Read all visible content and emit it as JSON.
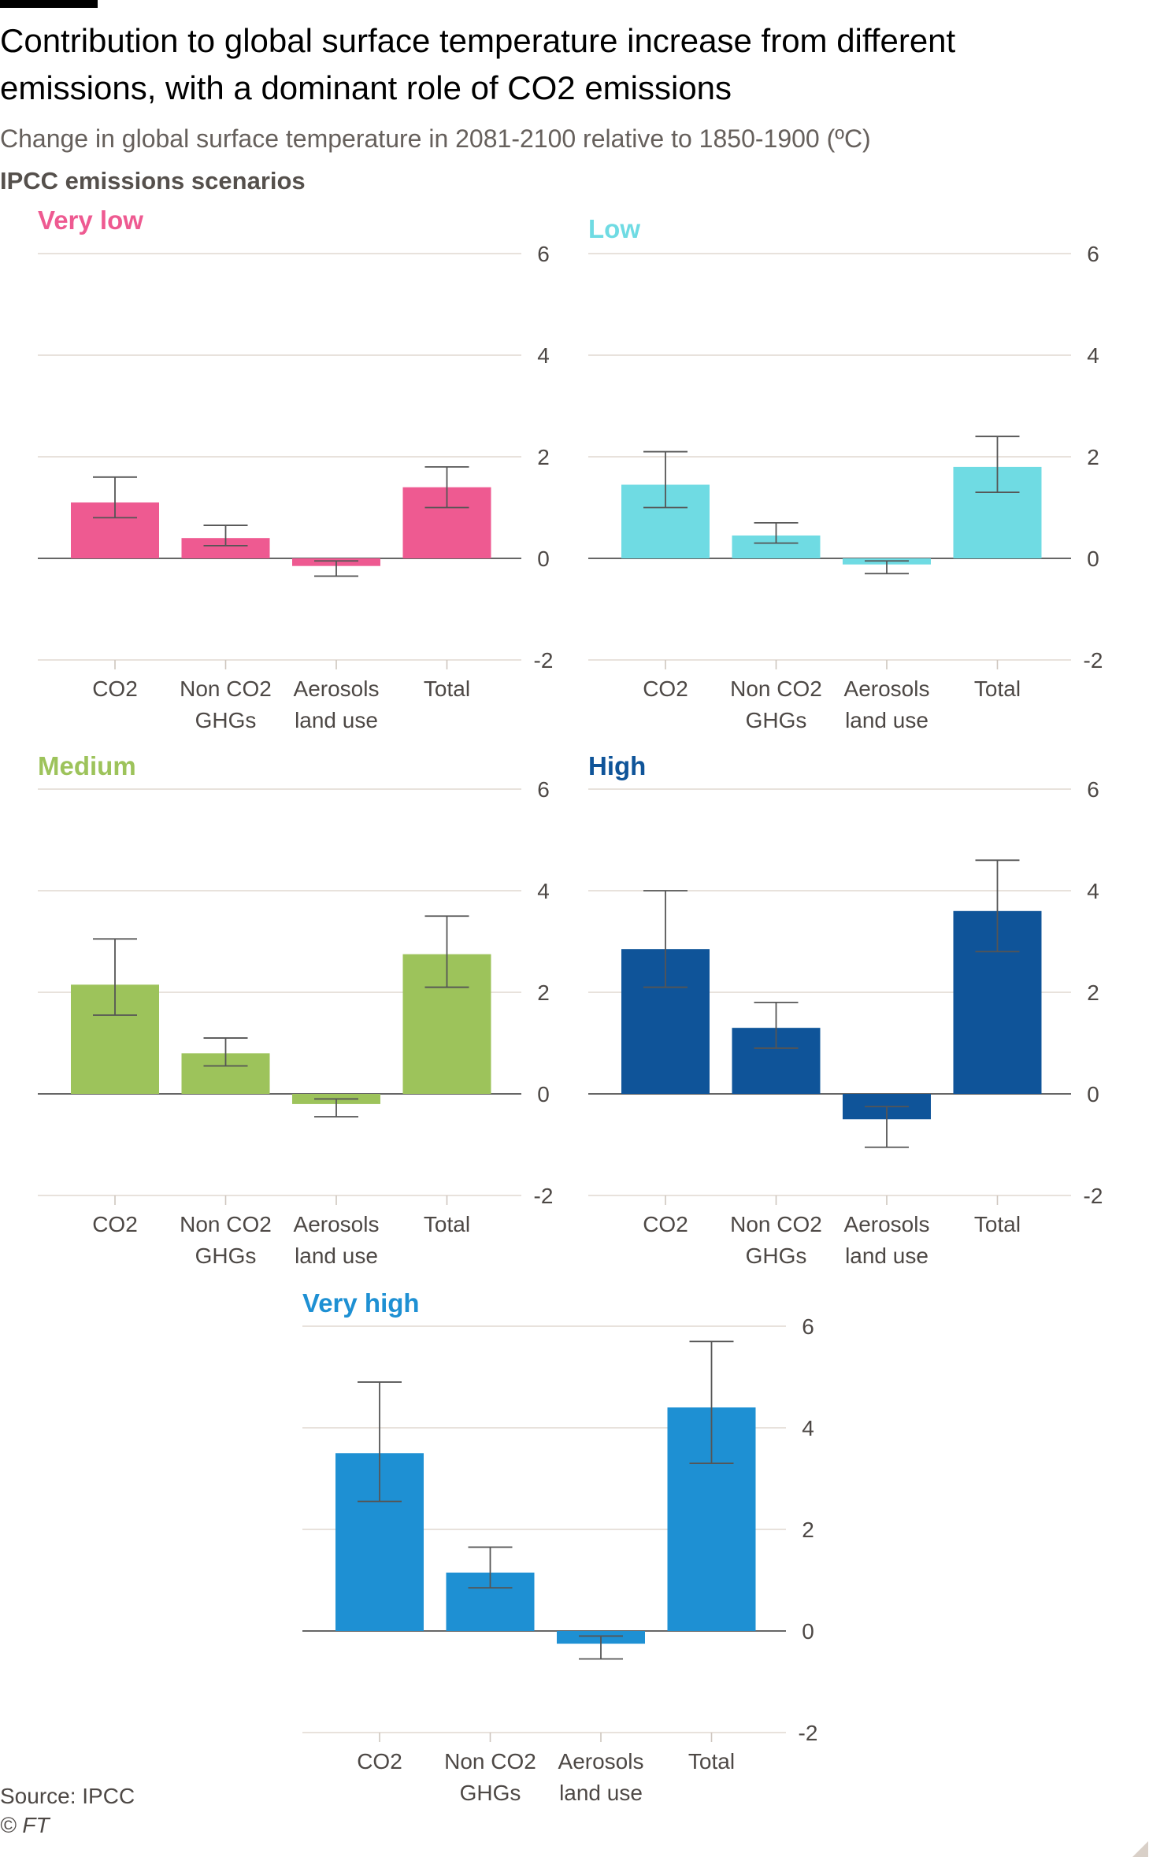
{
  "title": "Contribution to global surface temperature increase from different emissions, with a dominant role of CO2 emissions",
  "subtitle": "Change in global surface temperature in 2081-2100 relative to 1850-1900 (ºC)",
  "scenarios_label": "IPCC emissions scenarios",
  "source": "Source: IPCC",
  "copyright": "© FT",
  "chart_data": [
    {
      "type": "bar",
      "title": "Very low",
      "color": "#ee5a91",
      "categories": [
        "CO2",
        "Non CO2 GHGs",
        "Aerosols land use",
        "Total"
      ],
      "category_lines": [
        [
          "CO2"
        ],
        [
          "Non CO2",
          "GHGs"
        ],
        [
          "Aerosols",
          "land use"
        ],
        [
          "Total"
        ]
      ],
      "values": [
        1.1,
        0.4,
        -0.15,
        1.4
      ],
      "error_low": [
        0.8,
        0.25,
        -0.35,
        1.0
      ],
      "error_high": [
        1.6,
        0.65,
        -0.05,
        1.8
      ],
      "ylim": [
        -2,
        6
      ],
      "yticks": [
        6,
        4,
        2,
        0,
        -2
      ]
    },
    {
      "type": "bar",
      "title": "Low",
      "color": "#6fdbe3",
      "categories": [
        "CO2",
        "Non CO2 GHGs",
        "Aerosols land use",
        "Total"
      ],
      "category_lines": [
        [
          "CO2"
        ],
        [
          "Non CO2",
          "GHGs"
        ],
        [
          "Aerosols",
          "land use"
        ],
        [
          "Total"
        ]
      ],
      "values": [
        1.45,
        0.45,
        -0.12,
        1.8
      ],
      "error_low": [
        1.0,
        0.3,
        -0.3,
        1.3
      ],
      "error_high": [
        2.1,
        0.7,
        -0.05,
        2.4
      ],
      "ylim": [
        -2,
        6
      ],
      "yticks": [
        6,
        4,
        2,
        0,
        -2
      ]
    },
    {
      "type": "bar",
      "title": "Medium",
      "color": "#9dc35b",
      "categories": [
        "CO2",
        "Non CO2 GHGs",
        "Aerosols land use",
        "Total"
      ],
      "category_lines": [
        [
          "CO2"
        ],
        [
          "Non CO2",
          "GHGs"
        ],
        [
          "Aerosols",
          "land use"
        ],
        [
          "Total"
        ]
      ],
      "values": [
        2.15,
        0.8,
        -0.2,
        2.75
      ],
      "error_low": [
        1.55,
        0.55,
        -0.45,
        2.1
      ],
      "error_high": [
        3.05,
        1.1,
        -0.1,
        3.5
      ],
      "ylim": [
        -2,
        6
      ],
      "yticks": [
        6,
        4,
        2,
        0,
        -2
      ]
    },
    {
      "type": "bar",
      "title": "High",
      "color": "#0f5499",
      "categories": [
        "CO2",
        "Non CO2 GHGs",
        "Aerosols land use",
        "Total"
      ],
      "category_lines": [
        [
          "CO2"
        ],
        [
          "Non CO2",
          "GHGs"
        ],
        [
          "Aerosols",
          "land use"
        ],
        [
          "Total"
        ]
      ],
      "values": [
        2.85,
        1.3,
        -0.5,
        3.6
      ],
      "error_low": [
        2.1,
        0.9,
        -1.05,
        2.8
      ],
      "error_high": [
        4.0,
        1.8,
        -0.25,
        4.6
      ],
      "ylim": [
        -2,
        6
      ],
      "yticks": [
        6,
        4,
        2,
        0,
        -2
      ]
    },
    {
      "type": "bar",
      "title": "Very high",
      "color": "#1e90d3",
      "categories": [
        "CO2",
        "Non CO2 GHGs",
        "Aerosols land use",
        "Total"
      ],
      "category_lines": [
        [
          "CO2"
        ],
        [
          "Non CO2",
          "GHGs"
        ],
        [
          "Aerosols",
          "land use"
        ],
        [
          "Total"
        ]
      ],
      "values": [
        3.5,
        1.15,
        -0.25,
        4.4
      ],
      "error_low": [
        2.55,
        0.85,
        -0.55,
        3.3
      ],
      "error_high": [
        4.9,
        1.65,
        -0.1,
        5.7
      ],
      "ylim": [
        -2,
        6
      ],
      "yticks": [
        6,
        4,
        2,
        0,
        -2
      ]
    }
  ]
}
